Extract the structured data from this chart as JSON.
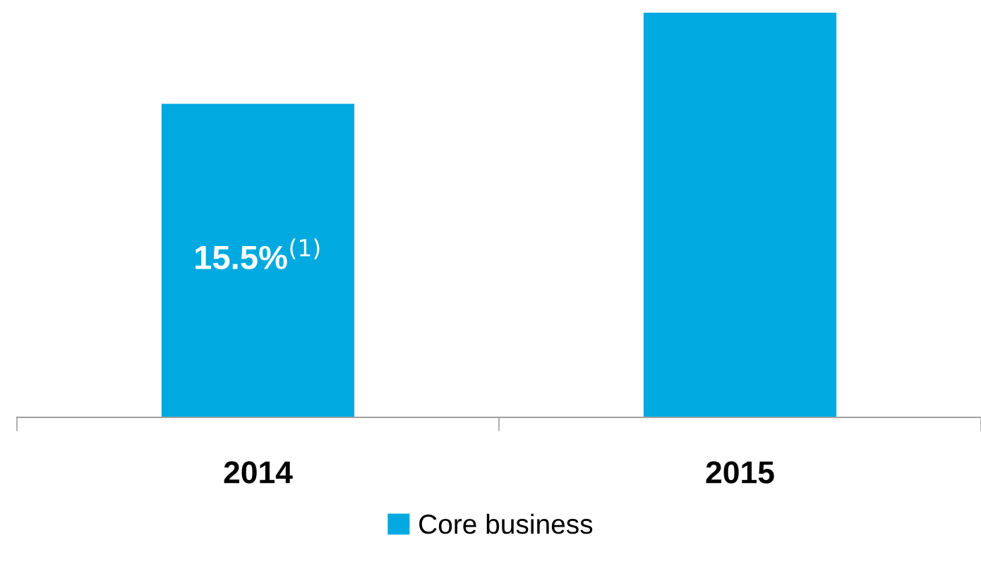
{
  "chart_data": {
    "type": "bar",
    "ylim": [
      0,
      20
    ],
    "tick_labels": "x",
    "categories": [
      "2014",
      "2015"
    ],
    "series": [
      {
        "name": "Core business",
        "color": "#00a9e0",
        "values": [
          15.5,
          20
        ],
        "value_labels": [
          "15.5%$^{(1)}$",
          null
        ]
      }
    ],
    "legend": "bottom",
    "grid": false
  }
}
